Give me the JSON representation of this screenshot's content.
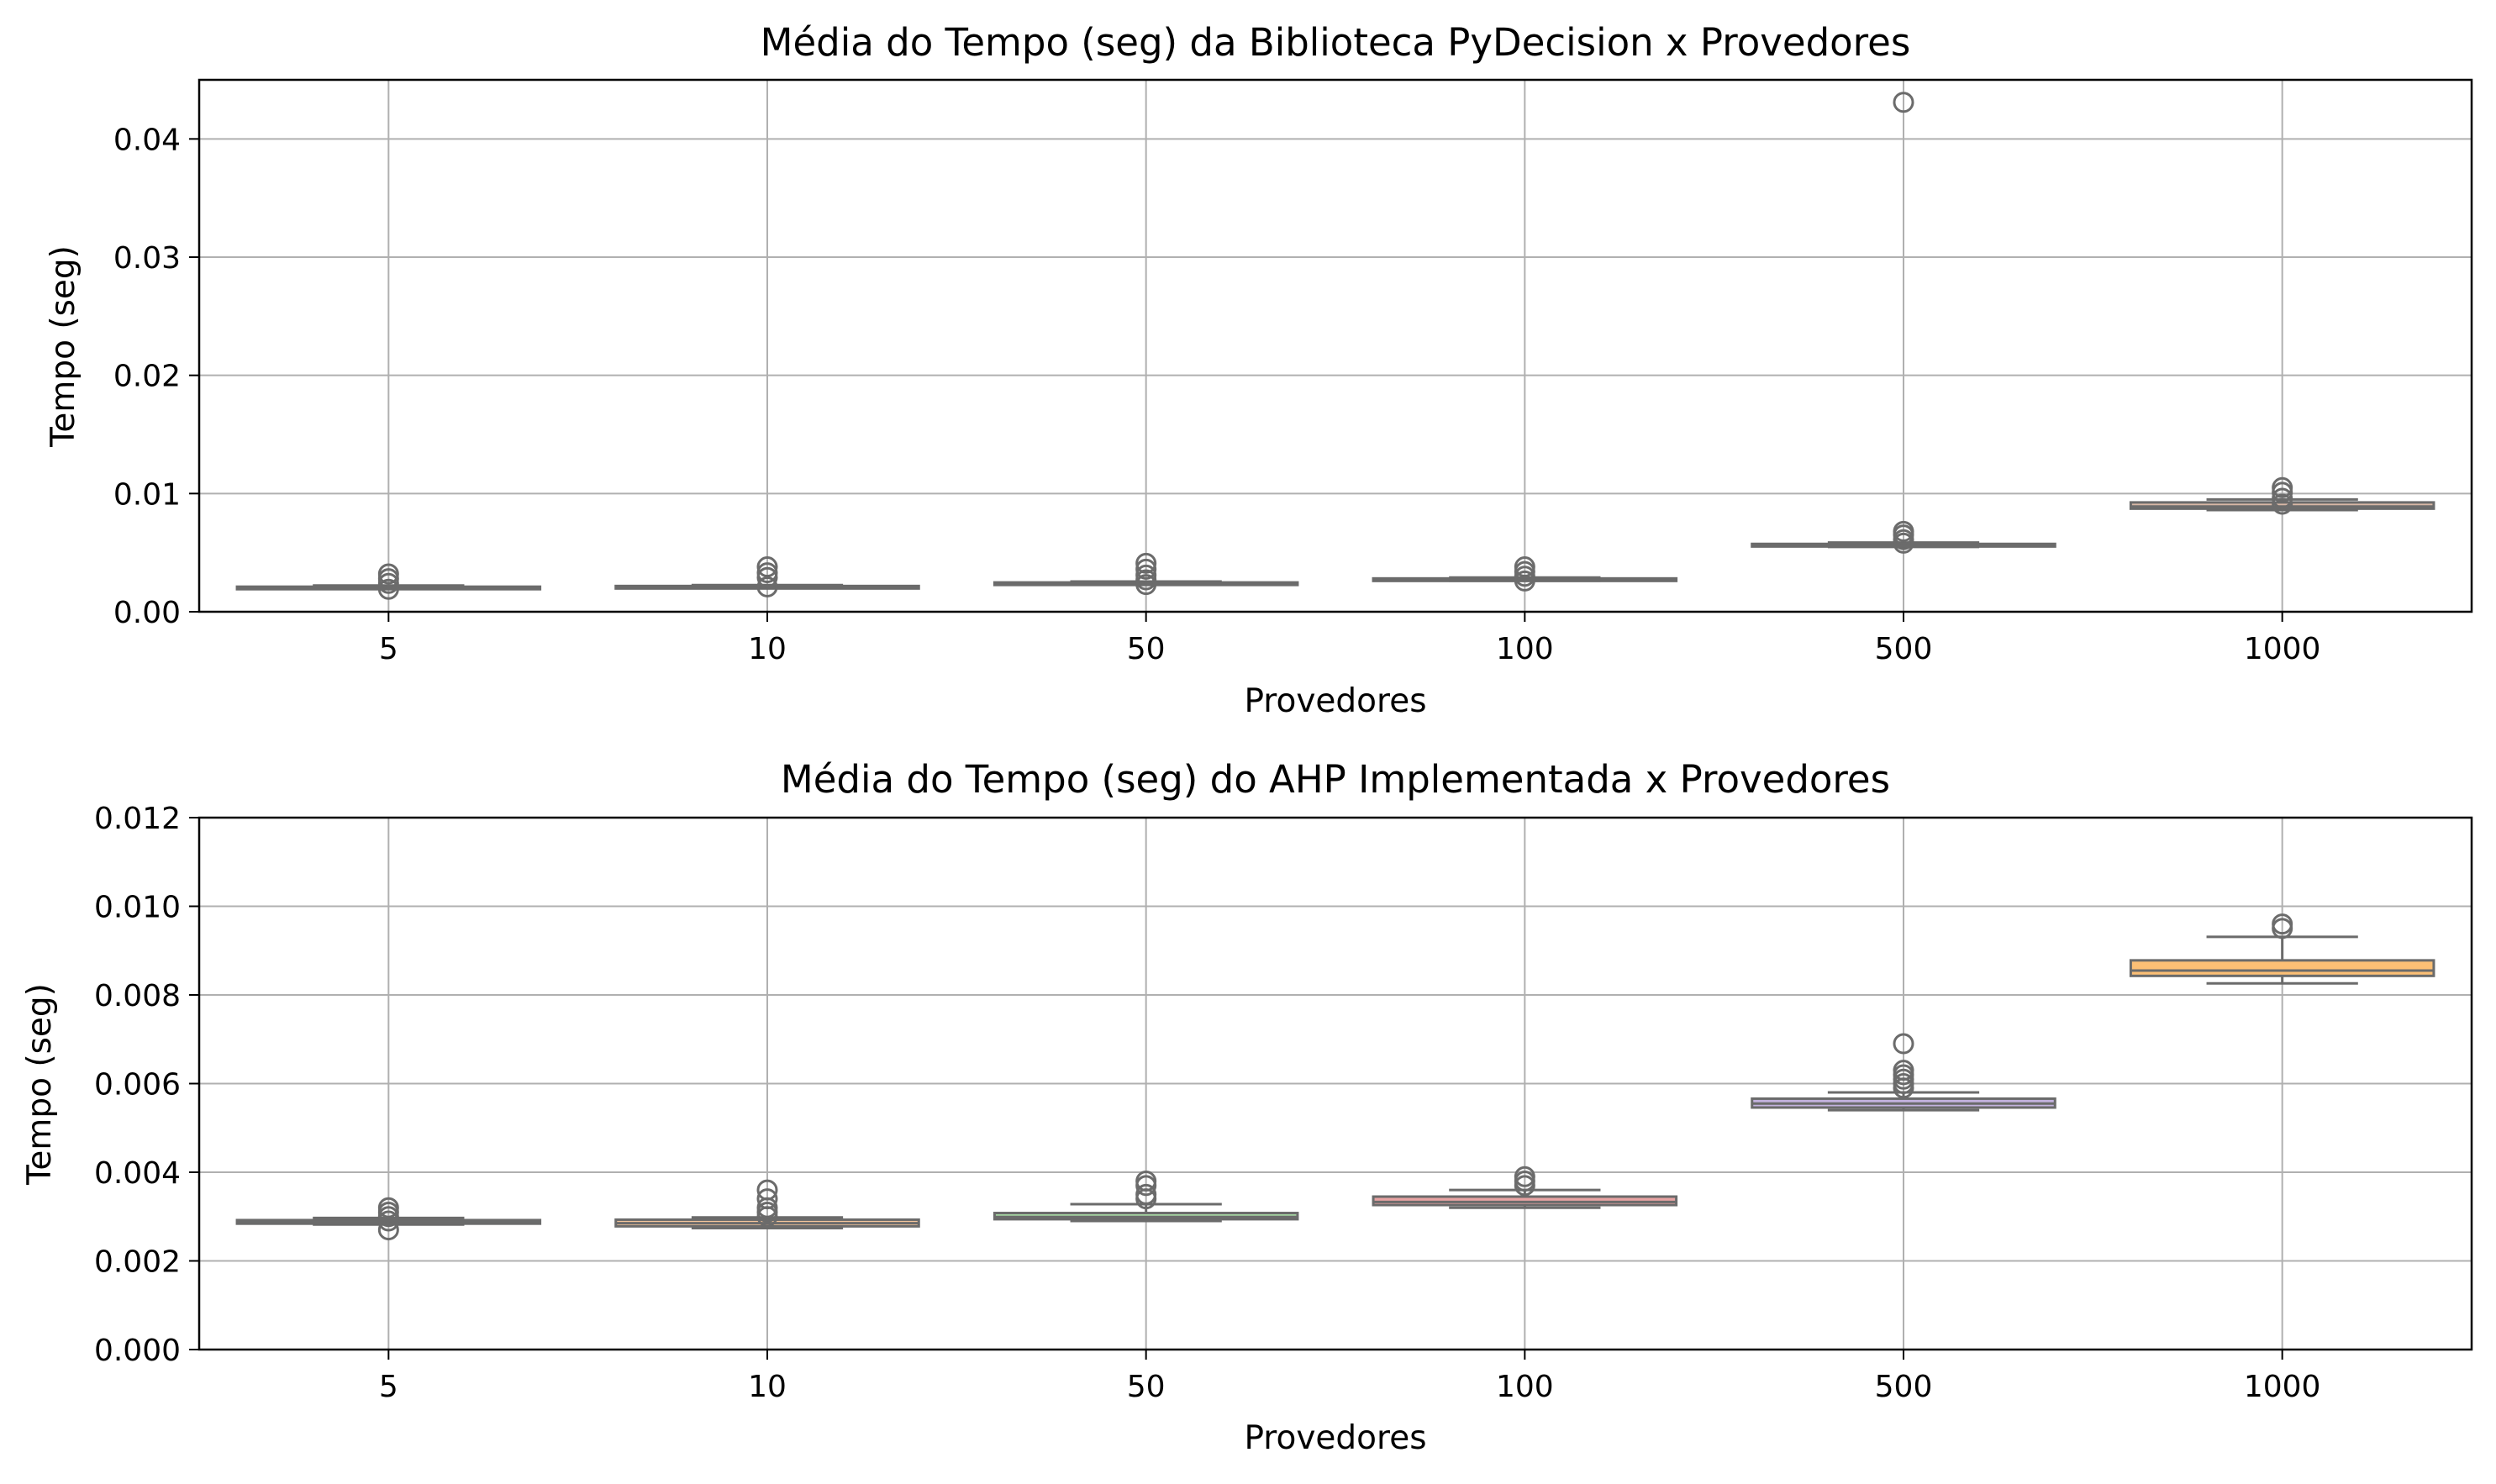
{
  "chart_data": [
    {
      "type": "box",
      "title": "Média do Tempo (seg) da Biblioteca PyDecision x Provedores",
      "xlabel": "Provedores",
      "ylabel": "Tempo (seg)",
      "categories": [
        "5",
        "10",
        "50",
        "100",
        "500",
        "1000"
      ],
      "ylim": [
        0,
        0.045
      ],
      "yticks": [
        0.0,
        0.01,
        0.02,
        0.03,
        0.04
      ],
      "ytick_labels": [
        "0.00",
        "0.01",
        "0.02",
        "0.03",
        "0.04"
      ],
      "grid": true,
      "boxes": [
        {
          "category": "5",
          "whisker_low": 0.00195,
          "q1": 0.00198,
          "median": 0.00203,
          "q3": 0.00212,
          "whisker_high": 0.00222,
          "fliers": [
            0.0019,
            0.0024,
            0.0028,
            0.0032
          ],
          "color": "#b3c6e2"
        },
        {
          "category": "10",
          "whisker_low": 0.002,
          "q1": 0.00203,
          "median": 0.00208,
          "q3": 0.00218,
          "whisker_high": 0.00226,
          "fliers": [
            0.0021,
            0.0029,
            0.0033,
            0.0038
          ],
          "color": "#f2b985"
        },
        {
          "category": "50",
          "whisker_low": 0.00228,
          "q1": 0.00232,
          "median": 0.00238,
          "q3": 0.00248,
          "whisker_high": 0.00256,
          "fliers": [
            0.0023,
            0.0027,
            0.0031,
            0.0036,
            0.0041
          ],
          "color": "#a8d8a8"
        },
        {
          "category": "100",
          "whisker_low": 0.00262,
          "q1": 0.00266,
          "median": 0.00272,
          "q3": 0.00282,
          "whisker_high": 0.0029,
          "fliers": [
            0.0026,
            0.003,
            0.0034,
            0.0038
          ],
          "color": "#e9a3a3"
        },
        {
          "category": "500",
          "whisker_low": 0.00548,
          "q1": 0.00552,
          "median": 0.00558,
          "q3": 0.00574,
          "whisker_high": 0.00586,
          "fliers": [
            0.0058,
            0.0061,
            0.0065,
            0.0068,
            0.0431
          ],
          "color": "#c5b4dd"
        },
        {
          "category": "1000",
          "whisker_low": 0.0086,
          "q1": 0.00872,
          "median": 0.0089,
          "q3": 0.00925,
          "whisker_high": 0.0095,
          "fliers": [
            0.0091,
            0.0096,
            0.0101,
            0.0105
          ],
          "color": "#d8b7a6"
        }
      ]
    },
    {
      "type": "box",
      "title": "Média do Tempo (seg) do AHP Implementada x Provedores",
      "xlabel": "Provedores",
      "ylabel": "Tempo (seg)",
      "categories": [
        "5",
        "10",
        "50",
        "100",
        "500",
        "1000"
      ],
      "ylim": [
        0,
        0.012
      ],
      "yticks": [
        0.0,
        0.002,
        0.004,
        0.006,
        0.008,
        0.01,
        0.012
      ],
      "ytick_labels": [
        "0.000",
        "0.002",
        "0.004",
        "0.006",
        "0.008",
        "0.010",
        "0.012"
      ],
      "grid": true,
      "boxes": [
        {
          "category": "5",
          "whisker_low": 0.00282,
          "q1": 0.00284,
          "median": 0.00287,
          "q3": 0.00292,
          "whisker_high": 0.00297,
          "fliers": [
            0.0027,
            0.0029,
            0.003,
            0.0031,
            0.0032
          ],
          "color": "#a9c4e4"
        },
        {
          "category": "10",
          "whisker_low": 0.00274,
          "q1": 0.00278,
          "median": 0.00285,
          "q3": 0.00293,
          "whisker_high": 0.00298,
          "fliers": [
            0.003,
            0.0031,
            0.0032,
            0.0034,
            0.0036
          ],
          "color": "#f3c49a"
        },
        {
          "category": "50",
          "whisker_low": 0.0029,
          "q1": 0.00294,
          "median": 0.00299,
          "q3": 0.00308,
          "whisker_high": 0.00328,
          "fliers": [
            0.0034,
            0.0035,
            0.0037,
            0.0038
          ],
          "color": "#a5d6a2"
        },
        {
          "category": "100",
          "whisker_low": 0.0032,
          "q1": 0.00326,
          "median": 0.00333,
          "q3": 0.00345,
          "whisker_high": 0.0036,
          "fliers": [
            0.0037,
            0.0038,
            0.0039
          ],
          "color": "#e8a3a3"
        },
        {
          "category": "500",
          "whisker_low": 0.0054,
          "q1": 0.00546,
          "median": 0.00555,
          "q3": 0.00566,
          "whisker_high": 0.0058,
          "fliers": [
            0.0059,
            0.006,
            0.0061,
            0.0062,
            0.0063,
            0.0069
          ],
          "color": "#c3b2de"
        },
        {
          "category": "1000",
          "whisker_low": 0.00826,
          "q1": 0.00843,
          "median": 0.00855,
          "q3": 0.00878,
          "whisker_high": 0.00931,
          "fliers": [
            0.0095,
            0.0096
          ],
          "color": "#fcbf75"
        }
      ]
    }
  ]
}
